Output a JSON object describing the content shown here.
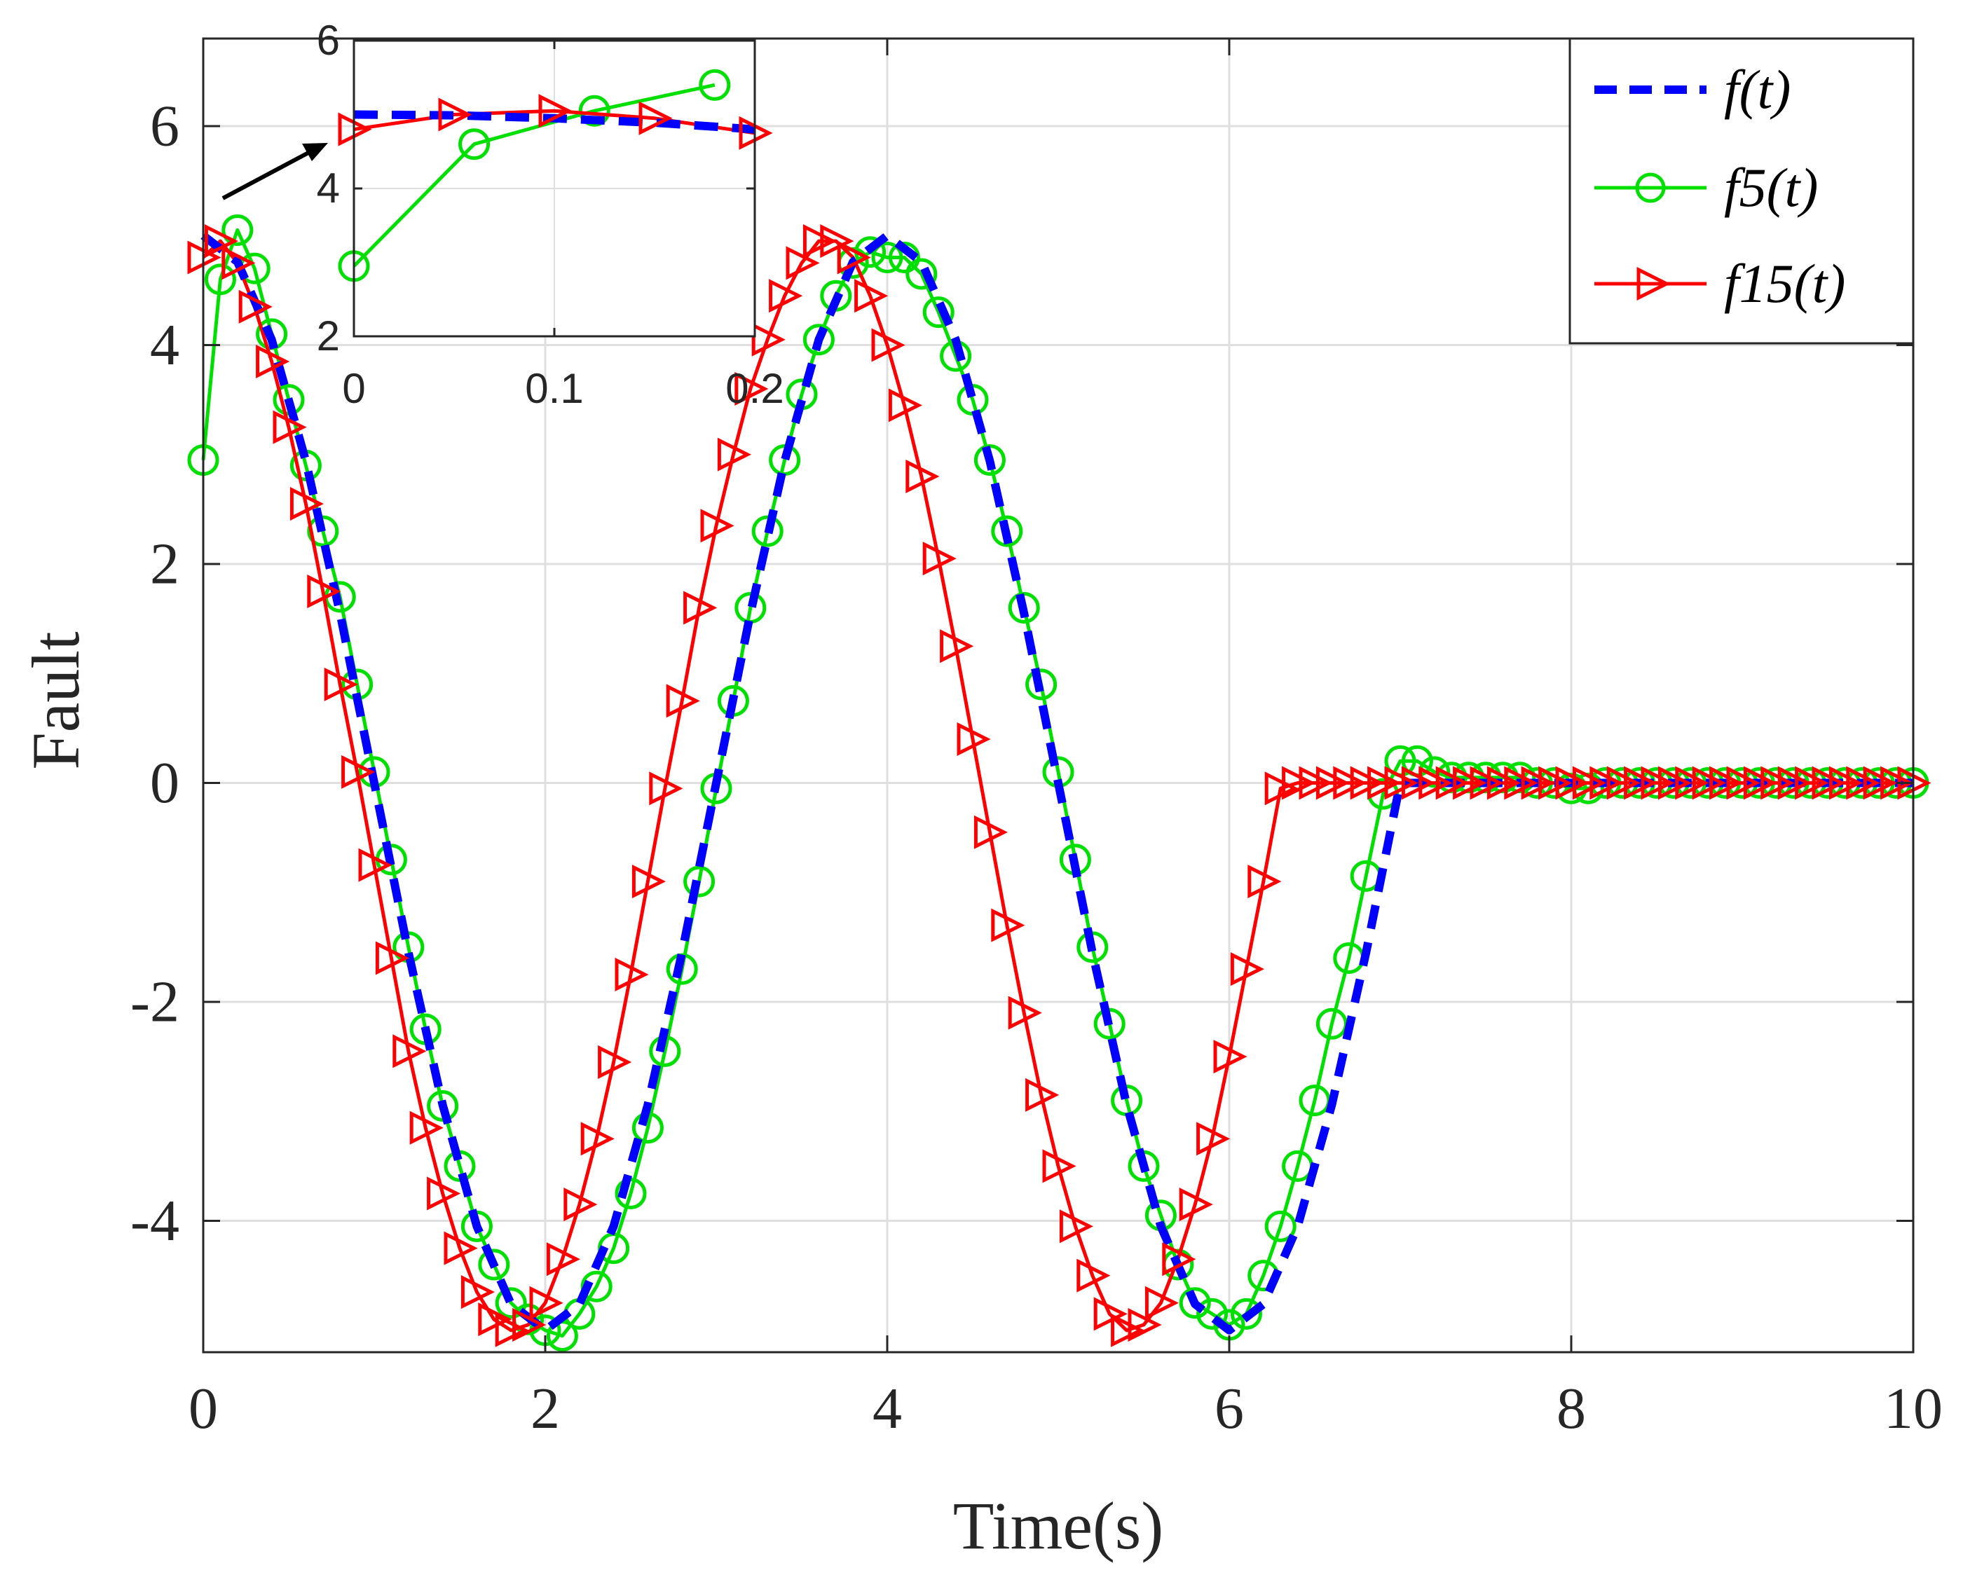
{
  "chart_data": [
    {
      "type": "line",
      "xlabel": "Time(s)",
      "ylabel": "Fault",
      "xlim": [
        0,
        10
      ],
      "ylim": [
        -5.2,
        6.8
      ],
      "grid": true,
      "xticks": [
        0,
        2,
        4,
        6,
        8,
        10
      ],
      "xtick_labels": [
        "0",
        "2",
        "4",
        "6",
        "8",
        "10"
      ],
      "yticks": [
        -4,
        -2,
        0,
        2,
        4,
        6
      ],
      "ytick_labels": [
        "-4",
        "-2",
        "0",
        "2",
        "4",
        "6"
      ],
      "legend_position": "top-right",
      "colors": {
        "f": "#0000ff",
        "f5": "#00e000",
        "f15": "#ff0000",
        "arrow": "#000000"
      },
      "series": [
        {
          "name": "f(t)",
          "style": "dashed",
          "x": [
            0,
            0.2,
            0.4,
            0.6,
            0.8,
            1.0,
            1.2,
            1.4,
            1.6,
            1.8,
            2.0,
            2.2,
            2.4,
            2.6,
            2.8,
            3.0,
            3.2,
            3.4,
            3.6,
            3.8,
            4.0,
            4.2,
            4.4,
            4.6,
            4.8,
            5.0,
            5.2,
            5.4,
            5.6,
            5.8,
            6.0,
            6.2,
            6.4,
            6.6,
            6.8,
            7.0,
            7.5,
            8.0,
            8.5,
            9.0,
            9.5,
            10.0
          ],
          "values": [
            5.0,
            4.76,
            4.05,
            2.94,
            1.55,
            0.0,
            -1.55,
            -2.94,
            -4.05,
            -4.76,
            -5.0,
            -4.76,
            -4.05,
            -2.94,
            -1.55,
            0.0,
            1.55,
            2.94,
            4.05,
            4.76,
            5.0,
            4.76,
            4.05,
            2.94,
            1.55,
            0.0,
            -1.55,
            -2.94,
            -4.05,
            -4.76,
            -5.0,
            -4.76,
            -4.05,
            -2.94,
            -1.55,
            0.0,
            0.0,
            0.0,
            0.0,
            0.0,
            0.0,
            0.0
          ]
        },
        {
          "name": "f5(t)",
          "marker": "circle",
          "x": [
            0,
            0.1,
            0.2,
            0.3,
            0.4,
            0.5,
            0.6,
            0.7,
            0.8,
            0.9,
            1.0,
            1.1,
            1.2,
            1.3,
            1.4,
            1.5,
            1.6,
            1.7,
            1.8,
            1.9,
            2.0,
            2.1,
            2.2,
            2.3,
            2.4,
            2.5,
            2.6,
            2.7,
            2.8,
            2.9,
            3.0,
            3.1,
            3.2,
            3.3,
            3.4,
            3.5,
            3.6,
            3.7,
            3.8,
            3.9,
            4.0,
            4.1,
            4.2,
            4.3,
            4.4,
            4.5,
            4.6,
            4.7,
            4.8,
            4.9,
            5.0,
            5.1,
            5.2,
            5.3,
            5.4,
            5.5,
            5.6,
            5.7,
            5.8,
            5.9,
            6.0,
            6.1,
            6.2,
            6.3,
            6.4,
            6.5,
            6.6,
            6.7,
            6.8,
            6.9,
            7.0,
            7.1,
            7.2,
            7.3,
            7.4,
            7.5,
            7.6,
            7.7,
            7.8,
            7.9,
            8.0,
            8.1,
            8.2,
            8.3,
            8.4,
            8.5,
            8.6,
            8.7,
            8.8,
            8.9,
            9.0,
            9.1,
            9.2,
            9.3,
            9.4,
            9.5,
            9.6,
            9.7,
            9.8,
            9.9,
            10.0
          ],
          "values": [
            2.95,
            4.6,
            5.05,
            4.7,
            4.1,
            3.5,
            2.9,
            2.3,
            1.7,
            0.9,
            0.1,
            -0.7,
            -1.5,
            -2.25,
            -2.95,
            -3.5,
            -4.05,
            -4.4,
            -4.75,
            -4.9,
            -5.0,
            -5.05,
            -4.85,
            -4.6,
            -4.25,
            -3.75,
            -3.15,
            -2.45,
            -1.7,
            -0.9,
            -0.05,
            0.75,
            1.6,
            2.3,
            2.95,
            3.55,
            4.05,
            4.45,
            4.75,
            4.85,
            4.8,
            4.8,
            4.65,
            4.3,
            3.9,
            3.5,
            2.95,
            2.3,
            1.6,
            0.9,
            0.1,
            -0.7,
            -1.5,
            -2.2,
            -2.9,
            -3.5,
            -3.95,
            -4.4,
            -4.75,
            -4.85,
            -4.95,
            -4.85,
            -4.5,
            -4.05,
            -3.5,
            -2.9,
            -2.2,
            -1.6,
            -0.85,
            -0.1,
            0.2,
            0.2,
            0.1,
            0.05,
            0.05,
            0.05,
            0.05,
            0.05,
            0.0,
            0.0,
            -0.05,
            -0.05,
            0.0,
            0.0,
            0.0,
            0.0,
            0.0,
            0.0,
            0.0,
            0.0,
            0.0,
            0.0,
            0.0,
            0.0,
            0.0,
            0.0,
            0.0,
            0.0,
            0.0,
            0.0,
            0.0
          ]
        },
        {
          "name": "f15(t)",
          "marker": "triangle-right",
          "x": [
            0,
            0.1,
            0.2,
            0.3,
            0.4,
            0.5,
            0.6,
            0.7,
            0.8,
            0.9,
            1.0,
            1.1,
            1.2,
            1.3,
            1.4,
            1.5,
            1.6,
            1.7,
            1.8,
            1.9,
            2.0,
            2.1,
            2.2,
            2.3,
            2.4,
            2.5,
            2.6,
            2.7,
            2.8,
            2.9,
            3.0,
            3.1,
            3.2,
            3.3,
            3.4,
            3.5,
            3.6,
            3.7,
            3.8,
            3.9,
            4.0,
            4.1,
            4.2,
            4.3,
            4.4,
            4.5,
            4.6,
            4.7,
            4.8,
            4.9,
            5.0,
            5.1,
            5.2,
            5.3,
            5.4,
            5.5,
            5.6,
            5.7,
            5.8,
            5.9,
            6.0,
            6.1,
            6.2,
            6.3,
            6.4,
            6.5,
            6.6,
            6.7,
            6.8,
            6.9,
            7.0,
            7.1,
            7.2,
            7.3,
            7.4,
            7.5,
            7.6,
            7.7,
            7.8,
            7.9,
            8.0,
            8.1,
            8.2,
            8.3,
            8.4,
            8.5,
            8.6,
            8.7,
            8.8,
            8.9,
            9.0,
            9.1,
            9.2,
            9.3,
            9.4,
            9.5,
            9.6,
            9.7,
            9.8,
            9.9,
            10.0
          ],
          "values": [
            4.8,
            4.95,
            4.75,
            4.35,
            3.85,
            3.25,
            2.55,
            1.75,
            0.9,
            0.1,
            -0.75,
            -1.6,
            -2.45,
            -3.15,
            -3.75,
            -4.25,
            -4.65,
            -4.9,
            -5.0,
            -4.95,
            -4.75,
            -4.35,
            -3.85,
            -3.25,
            -2.55,
            -1.75,
            -0.9,
            -0.05,
            0.75,
            1.6,
            2.35,
            3.0,
            3.6,
            4.05,
            4.45,
            4.75,
            4.95,
            4.95,
            4.8,
            4.45,
            4.0,
            3.45,
            2.8,
            2.05,
            1.25,
            0.4,
            -0.45,
            -1.3,
            -2.1,
            -2.85,
            -3.5,
            -4.05,
            -4.5,
            -4.85,
            -5.0,
            -4.95,
            -4.75,
            -4.35,
            -3.85,
            -3.25,
            -2.5,
            -1.7,
            -0.9,
            -0.05,
            0.0,
            0.0,
            0.0,
            0.0,
            0.0,
            0.0,
            0.0,
            0.0,
            0.0,
            0.0,
            0.0,
            0.0,
            0.0,
            0.0,
            0.0,
            0.0,
            0.0,
            0.0,
            0.0,
            0.0,
            0.0,
            0.0,
            0.0,
            0.0,
            0.0,
            0.0,
            0.0,
            0.0,
            0.0,
            0.0,
            0.0,
            0.0,
            0.0,
            0.0,
            0.0,
            0.0,
            0.0
          ]
        }
      ],
      "annotation": "arrow pointing from the curve start near t=0 to the zoomed inset"
    },
    {
      "type": "line",
      "role": "inset-zoom",
      "xlim": [
        0,
        0.2
      ],
      "ylim": [
        2,
        6
      ],
      "grid": true,
      "xticks": [
        0,
        0.1,
        0.2
      ],
      "xtick_labels": [
        "0",
        "0.1",
        "0.2"
      ],
      "yticks": [
        2,
        4,
        6
      ],
      "ytick_labels": [
        "2",
        "4",
        "6"
      ],
      "series": [
        {
          "name": "f(t)",
          "x": [
            0,
            0.05,
            0.1,
            0.15,
            0.2
          ],
          "values": [
            5.0,
            4.99,
            4.95,
            4.89,
            4.8
          ]
        },
        {
          "name": "f5(t)",
          "x": [
            0,
            0.06,
            0.12,
            0.18
          ],
          "values": [
            2.95,
            4.6,
            5.05,
            5.4
          ]
        },
        {
          "name": "f15(t)",
          "x": [
            0,
            0.05,
            0.1,
            0.15,
            0.2
          ],
          "values": [
            4.8,
            5.0,
            5.05,
            4.95,
            4.75
          ]
        }
      ]
    }
  ]
}
